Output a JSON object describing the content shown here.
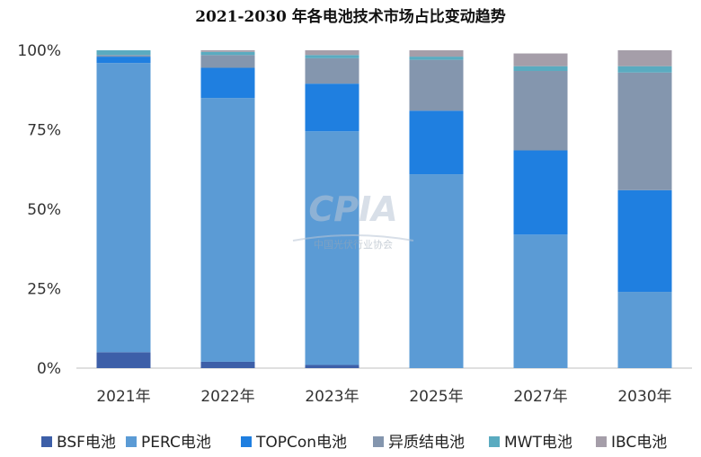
{
  "chart_data": {
    "type": "bar",
    "stacked": true,
    "title": "2021-2030 年各电池技术市场占比变动趋势",
    "categories": [
      "2021年",
      "2022年",
      "2023年",
      "2025年",
      "2027年",
      "2030年"
    ],
    "y_ticks": [
      "100%",
      "75%",
      "50%",
      "25%",
      "0%"
    ],
    "ylim": [
      0,
      100
    ],
    "grid": false,
    "legend_position": "bottom",
    "series": [
      {
        "name": "BSF电池",
        "color": "#3d5fa8",
        "values": [
          5,
          2,
          1,
          0,
          0,
          0
        ]
      },
      {
        "name": "PERC电池",
        "color": "#5b9bd5",
        "values": [
          91,
          83,
          73.5,
          61,
          42,
          24
        ]
      },
      {
        "name": "TOPCon电池",
        "color": "#1f7fe0",
        "values": [
          2,
          9.5,
          15,
          20,
          26.5,
          32
        ]
      },
      {
        "name": "异质结电池",
        "color": "#8496ae",
        "values": [
          0.5,
          4,
          8,
          16,
          25,
          37
        ]
      },
      {
        "name": "MWT电池",
        "color": "#5aabc0",
        "values": [
          1.5,
          1,
          1,
          1,
          1.5,
          2
        ]
      },
      {
        "name": "IBC电池",
        "color": "#a59ea9",
        "values": [
          0,
          0.5,
          1.5,
          2,
          4,
          5
        ]
      }
    ]
  },
  "watermark": {
    "brand": "CPIA",
    "org": "中国光伏行业协会"
  }
}
